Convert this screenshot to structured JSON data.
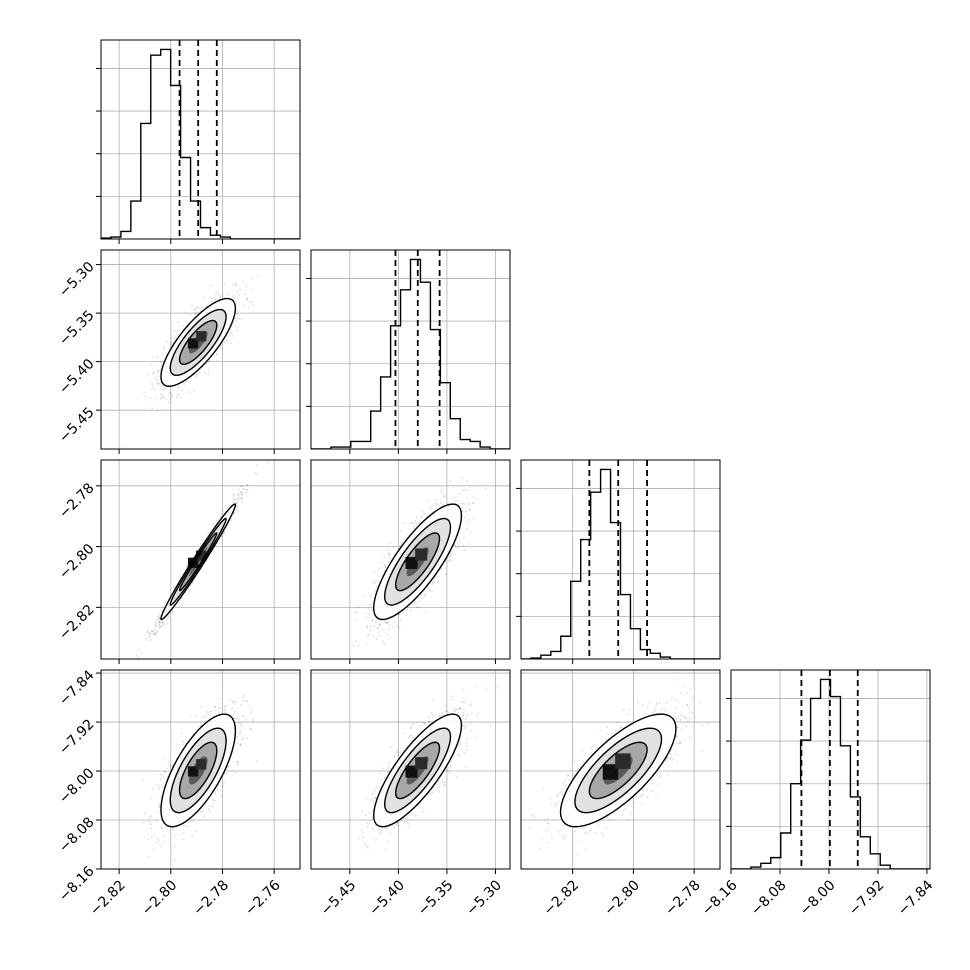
{
  "chart_data": {
    "type": "corner",
    "title": "",
    "grid": true,
    "n_params": 4,
    "params": [
      {
        "range": [
          -2.827,
          -2.75
        ],
        "ticks": [
          "-2.82",
          "-2.80",
          "-2.78",
          "-2.76"
        ],
        "tick_values": [
          -2.82,
          -2.8,
          -2.78,
          -2.76
        ],
        "quantiles": [
          -2.7966,
          -2.7894,
          -2.7822
        ],
        "mean": -2.7894,
        "sd": 0.0072
      },
      {
        "range": [
          -5.49,
          -5.285
        ],
        "ticks": [
          "-5.45",
          "-5.40",
          "-5.35",
          "-5.30"
        ],
        "tick_values": [
          -5.45,
          -5.4,
          -5.35,
          -5.3
        ],
        "quantiles": [
          -5.403,
          -5.38,
          -5.3575
        ],
        "mean": -5.3802,
        "sd": 0.0226
      },
      {
        "range": [
          -2.837,
          -2.7715
        ],
        "ticks": [
          "-2.82",
          "-2.80",
          "-2.78"
        ],
        "tick_values": [
          -2.82,
          -2.8,
          -2.78
        ],
        "quantiles": [
          -2.8145,
          -2.805,
          -2.7955
        ],
        "mean": -2.805,
        "sd": 0.0095
      },
      {
        "range": [
          -8.16,
          -7.835
        ],
        "ticks": [
          "-8.16",
          "-8.08",
          "-8.00",
          "-7.92",
          "-7.84"
        ],
        "tick_values": [
          -8.16,
          -8.08,
          -8.0,
          -7.92,
          -7.84
        ],
        "quantiles": [
          -8.045,
          -7.9985,
          -7.953
        ],
        "mean": -7.999,
        "sd": 0.046
      }
    ],
    "correlations": [
      {
        "i": 1,
        "j": 0,
        "rho": 0.78
      },
      {
        "i": 2,
        "j": 0,
        "rho": 0.985
      },
      {
        "i": 2,
        "j": 1,
        "rho": 0.8
      },
      {
        "i": 3,
        "j": 0,
        "rho": 0.7
      },
      {
        "i": 3,
        "j": 1,
        "rho": 0.8
      },
      {
        "i": 3,
        "j": 2,
        "rho": 0.74
      }
    ],
    "histograms": [
      [
        0.005,
        0.01,
        0.04,
        0.2,
        0.61,
        0.97,
        1.0,
        0.81,
        0.43,
        0.2,
        0.06,
        0.02,
        0.01,
        0.0,
        0.0,
        0.0,
        0.0,
        0.0,
        0.0,
        0.0
      ],
      [
        0.0,
        0.0,
        0.01,
        0.01,
        0.04,
        0.04,
        0.2,
        0.38,
        0.65,
        0.84,
        1.0,
        0.88,
        0.63,
        0.35,
        0.16,
        0.05,
        0.04,
        0.01,
        0.0,
        0.0
      ],
      [
        0.0,
        0.005,
        0.02,
        0.04,
        0.12,
        0.41,
        0.63,
        0.88,
        1.0,
        0.72,
        0.34,
        0.16,
        0.05,
        0.03,
        0.01,
        0.0,
        0.0,
        0.0,
        0.0,
        0.0
      ],
      [
        0.0,
        0.0,
        0.01,
        0.03,
        0.06,
        0.19,
        0.45,
        0.68,
        0.9,
        1.0,
        0.91,
        0.65,
        0.38,
        0.17,
        0.08,
        0.02,
        0.0,
        0.0,
        0.0,
        0.0
      ]
    ],
    "colors": {
      "line": "#000000",
      "grid": "#b0b0b0",
      "points": "#000000"
    }
  }
}
